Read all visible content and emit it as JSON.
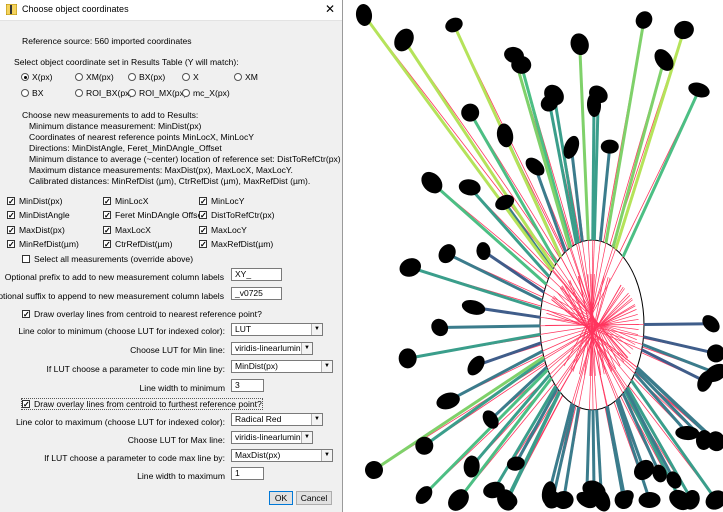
{
  "window": {
    "title": "Choose object coordinates",
    "close_glyph": "✕"
  },
  "reference_source": "Reference source: 560 imported coordinates",
  "select_set_label": "Select object coordinate set in Results Table (Y will match):",
  "coordinate_options": [
    {
      "label": "X(px)",
      "selected": true
    },
    {
      "label": "XM(px)",
      "selected": false
    },
    {
      "label": "BX(px)",
      "selected": false
    },
    {
      "label": "X",
      "selected": false
    },
    {
      "label": "XM",
      "selected": false
    },
    {
      "label": "BX",
      "selected": false
    },
    {
      "label": "ROI_BX(px)",
      "selected": false
    },
    {
      "label": "ROI_MX(px)",
      "selected": false
    },
    {
      "label": "mc_X(px)",
      "selected": false
    }
  ],
  "info_lines": [
    "Choose new measurements to add to Results:",
    "Minimum distance measurement: MinDist(px)",
    "Coordinates of nearest reference points MinLocX, MinLocY",
    "Directions: MinDistAngle, Feret_MinDAngle_Offset",
    "Minimum distance to average (~center) location of reference set: DistToRefCtr(px)",
    "Maximum distance measurements: MaxDist(px), MaxLocX, MaxLocY.",
    "Calibrated distances: MinRefDist (µm), CtrRefDist (µm), MaxRefDist (µm)."
  ],
  "measurements": [
    {
      "label": "MinDist(px)",
      "checked": true
    },
    {
      "label": "MinLocX",
      "checked": true
    },
    {
      "label": "MinLocY",
      "checked": true
    },
    {
      "label": "MinDistAngle",
      "checked": true
    },
    {
      "label": "Feret MinDAngle Offset",
      "checked": true
    },
    {
      "label": "DistToRefCtr(px)",
      "checked": true
    },
    {
      "label": "MaxDist(px)",
      "checked": true
    },
    {
      "label": "MaxLocX",
      "checked": true
    },
    {
      "label": "MaxLocY",
      "checked": true
    },
    {
      "label": "MinRefDist(µm)",
      "checked": true
    },
    {
      "label": "CtrRefDist(µm)",
      "checked": true
    },
    {
      "label": "MaxRefDist(µm)",
      "checked": true
    }
  ],
  "select_all": {
    "label": "Select all measurements (override above)",
    "checked": false
  },
  "prefix": {
    "label": "Optional prefix to add to new measurement column labels",
    "value": "XY_"
  },
  "suffix": {
    "label": "Optional suffix to append to new measurement column labels",
    "value": "_v0725"
  },
  "min_section": {
    "checkbox_label": "Draw overlay lines from centroid to nearest reference point?",
    "checked": true,
    "color_label": "Line color to minimum (choose LUT for indexed color):",
    "color_value": "LUT",
    "lut_label": "Choose LUT for Min line:",
    "lut_value": "viridis-linearlumin",
    "param_label": "If LUT choose a parameter to code min line by:",
    "param_value": "MinDist(px)",
    "width_label": "Line width to minimum",
    "width_value": "3"
  },
  "max_section": {
    "checkbox_label": "Draw overlay lines from centroid to furthest reference point?",
    "checked": true,
    "color_label": "Line color to maximum (choose LUT for indexed color):",
    "color_value": "Radical Red",
    "lut_label": "Choose LUT for Max line:",
    "lut_value": "viridis-linearlumin",
    "param_label": "If LUT choose a parameter to code max line by:",
    "param_value": "MaxDist(px)",
    "width_label": "Line width to maximum",
    "width_value": "1"
  },
  "buttons": {
    "ok": "OK",
    "cancel": "Cancel"
  },
  "colors": {
    "ellipse_fill": "#ffffff",
    "max_line": "#ff355e",
    "blob": "#000000"
  }
}
